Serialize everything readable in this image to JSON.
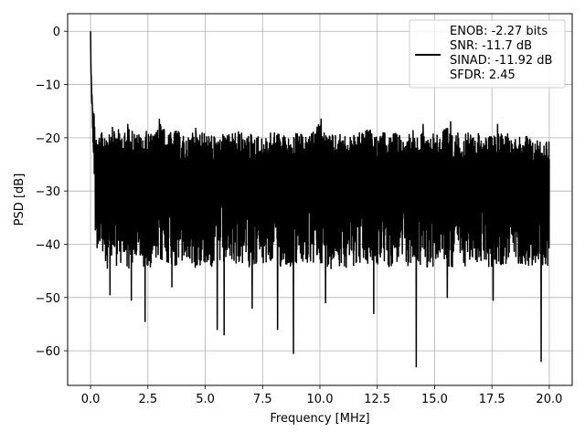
{
  "chart_data": {
    "type": "line",
    "title": "",
    "xlabel": "Frequency [MHz]",
    "ylabel": "PSD [dB]",
    "xlim": [
      -1.0,
      21.0
    ],
    "ylim": [
      -66.5,
      3.3
    ],
    "grid": true,
    "legend_position": "top-right",
    "x_ticks": [
      {
        "value": 0.0,
        "label": "0.0"
      },
      {
        "value": 2.5,
        "label": "2.5"
      },
      {
        "value": 5.0,
        "label": "5.0"
      },
      {
        "value": 7.5,
        "label": "7.5"
      },
      {
        "value": 10.0,
        "label": "10.0"
      },
      {
        "value": 12.5,
        "label": "12.5"
      },
      {
        "value": 15.0,
        "label": "15.0"
      },
      {
        "value": 17.5,
        "label": "17.5"
      },
      {
        "value": 20.0,
        "label": "20.0"
      }
    ],
    "y_ticks": [
      {
        "value": 0,
        "label": "0"
      },
      {
        "value": -10,
        "label": "−10"
      },
      {
        "value": -20,
        "label": "−20"
      },
      {
        "value": -30,
        "label": "−30"
      },
      {
        "value": -40,
        "label": "−40"
      },
      {
        "value": -50,
        "label": "−50"
      },
      {
        "value": -60,
        "label": "−60"
      }
    ],
    "legend": {
      "lines": [
        "ENOB: -2.27 bits",
        "SNR: -11.7 dB",
        "SINAD: -11.92 dB",
        "SFDR: 2.45"
      ]
    },
    "series": [
      {
        "color": "#000000",
        "description": "PSD trace: peak 0 dB at 0 MHz, fast drop to ~-20 dB by 0.2 MHz, then a noise floor between about -20 and -40 dB to 20 MHz",
        "x": [
          0.0,
          0.02,
          0.05,
          0.08,
          0.12,
          0.16,
          0.2,
          0.25,
          0.3,
          0.4,
          0.5,
          0.6,
          0.75,
          1.0,
          1.25,
          1.5,
          1.75,
          2.0,
          2.25,
          2.5,
          2.75,
          3.0,
          3.25,
          3.5,
          3.75,
          4.0,
          4.25,
          4.5,
          4.75,
          5.0,
          5.25,
          5.5,
          5.75,
          6.0,
          6.25,
          6.5,
          6.75,
          7.0,
          7.25,
          7.5,
          7.75,
          8.0,
          8.25,
          8.5,
          8.75,
          9.0,
          9.25,
          9.5,
          9.75,
          10.0,
          10.25,
          10.5,
          10.75,
          11.0,
          11.25,
          11.5,
          11.75,
          12.0,
          12.25,
          12.5,
          12.75,
          13.0,
          13.25,
          13.5,
          13.75,
          14.0,
          14.25,
          14.5,
          14.75,
          15.0,
          15.25,
          15.5,
          15.75,
          16.0,
          16.25,
          16.5,
          16.75,
          17.0,
          17.25,
          17.5,
          17.75,
          18.0,
          18.25,
          18.5,
          18.75,
          19.0,
          19.25,
          19.5,
          19.75,
          20.0
        ],
        "y": [
          0.0,
          -8.0,
          -12.0,
          -16.0,
          -19.0,
          -21.0,
          -22.5,
          -24.0,
          -26.0,
          -27.5,
          -28.0,
          -28.5,
          -29.0,
          -29.0,
          -28.5,
          -29.5,
          -29.0,
          -28.5,
          -29.0,
          -28.5,
          -29.0,
          -28.5,
          -28.0,
          -28.5,
          -29.0,
          -28.5,
          -28.0,
          -29.0,
          -28.5,
          -28.5,
          -29.0,
          -28.5,
          -29.0,
          -28.5,
          -28.0,
          -28.5,
          -29.0,
          -28.5,
          -28.5,
          -29.0,
          -28.5,
          -28.0,
          -29.0,
          -28.5,
          -29.0,
          -28.5,
          -28.5,
          -29.0,
          -28.5,
          -28.0,
          -28.5,
          -29.0,
          -28.5,
          -28.5,
          -29.0,
          -28.5,
          -28.0,
          -28.5,
          -29.0,
          -28.5,
          -28.5,
          -29.0,
          -28.5,
          -28.0,
          -28.5,
          -29.0,
          -28.5,
          -28.5,
          -29.0,
          -28.5,
          -28.0,
          -28.5,
          -29.0,
          -28.5,
          -28.5,
          -29.0,
          -28.5,
          -28.0,
          -28.5,
          -29.0,
          -28.5,
          -28.5,
          -29.0,
          -28.5,
          -28.0,
          -28.5,
          -29.0,
          -28.5,
          -28.5,
          -29.0
        ],
        "upper_envelope": [
          0.0,
          -8.0,
          -12.0,
          -15.0,
          -17.0,
          -18.0,
          -18.5,
          -19.0,
          -19.5,
          -19.0,
          -18.5,
          -18.0,
          -17.5,
          -17.5,
          -18.0,
          -18.5,
          -17.5,
          -18.5,
          -19.0,
          -18.0,
          -19.0,
          -16.5,
          -18.0,
          -18.5,
          -18.0,
          -19.0,
          -19.5,
          -17.5,
          -18.0,
          -18.5,
          -19.0,
          -19.5,
          -18.5,
          -19.0,
          -18.5,
          -18.0,
          -19.5,
          -18.5,
          -19.0,
          -19.5,
          -19.0,
          -18.0,
          -18.5,
          -19.0,
          -19.5,
          -18.5,
          -19.0,
          -19.5,
          -18.0,
          -16.5,
          -18.5,
          -19.0,
          -19.0,
          -18.5,
          -19.5,
          -19.0,
          -18.5,
          -18.0,
          -18.0,
          -19.5,
          -18.5,
          -19.0,
          -18.5,
          -19.0,
          -19.5,
          -17.5,
          -19.0,
          -18.5,
          -19.0,
          -18.0,
          -18.5,
          -17.0,
          -19.0,
          -18.5,
          -19.0,
          -18.5,
          -19.0,
          -18.0,
          -19.5,
          -19.0,
          -18.5,
          -19.0,
          -18.0,
          -19.0,
          -19.5,
          -18.5,
          -20.0,
          -19.5,
          -20.0,
          -19.5
        ],
        "lower_envelope": [
          0.0,
          -10.0,
          -15.0,
          -22.0,
          -28.0,
          -34.0,
          -38.0,
          -40.0,
          -41.0,
          -42.0,
          -41.0,
          -44.5,
          -49.5,
          -42.0,
          -46.5,
          -42.0,
          -50.5,
          -48.0,
          -47.5,
          -54.5,
          -44.0,
          -46.0,
          -44.0,
          -41.5,
          -50.5,
          -46.0,
          -42.5,
          -44.0,
          -43.5,
          -45.0,
          -56.0,
          -57.0,
          -45.0,
          -48.0,
          -50.5,
          -45.0,
          -51.0,
          -52.0,
          -47.0,
          -44.5,
          -48.0,
          -56.0,
          -44.0,
          -42.0,
          -60.5,
          -46.0,
          -51.0,
          -44.5,
          -50.5,
          -51.0,
          -43.0,
          -44.0,
          -46.0,
          -49.5,
          -44.0,
          -46.5,
          -44.5,
          -51.0,
          -50.5,
          -53.0,
          -43.5,
          -47.0,
          -51.5,
          -45.5,
          -50.5,
          -53.0,
          -63.0,
          -45.5,
          -51.0,
          -48.0,
          -49.5,
          -44.5,
          -50.0,
          -47.5,
          -51.5,
          -43.0,
          -51.5,
          -44.5,
          -50.5,
          -45.0,
          -44.0,
          -48.5,
          -47.0,
          -41.0,
          -44.5,
          -42.5,
          -48.5,
          -62.0,
          -50.0,
          -43.0
        ],
        "dips": [
          {
            "x": 0.85,
            "y": -49.5
          },
          {
            "x": 1.78,
            "y": -50.5
          },
          {
            "x": 2.38,
            "y": -54.5
          },
          {
            "x": 3.55,
            "y": -48.0
          },
          {
            "x": 5.52,
            "y": -56.0
          },
          {
            "x": 5.82,
            "y": -57.0
          },
          {
            "x": 7.05,
            "y": -52.0
          },
          {
            "x": 8.15,
            "y": -56.0
          },
          {
            "x": 8.85,
            "y": -60.5
          },
          {
            "x": 10.25,
            "y": -51.0
          },
          {
            "x": 12.35,
            "y": -53.0
          },
          {
            "x": 14.2,
            "y": -63.0
          },
          {
            "x": 15.55,
            "y": -50.0
          },
          {
            "x": 17.55,
            "y": -50.5
          },
          {
            "x": 19.65,
            "y": -62.0
          }
        ],
        "spikes": [
          {
            "x": 1.62,
            "y": -17.5
          },
          {
            "x": 3.0,
            "y": -16.5
          },
          {
            "x": 10.05,
            "y": -16.5
          },
          {
            "x": 14.5,
            "y": -17.5
          },
          {
            "x": 15.7,
            "y": -17.0
          },
          {
            "x": 17.75,
            "y": -17.5
          }
        ]
      }
    ]
  }
}
